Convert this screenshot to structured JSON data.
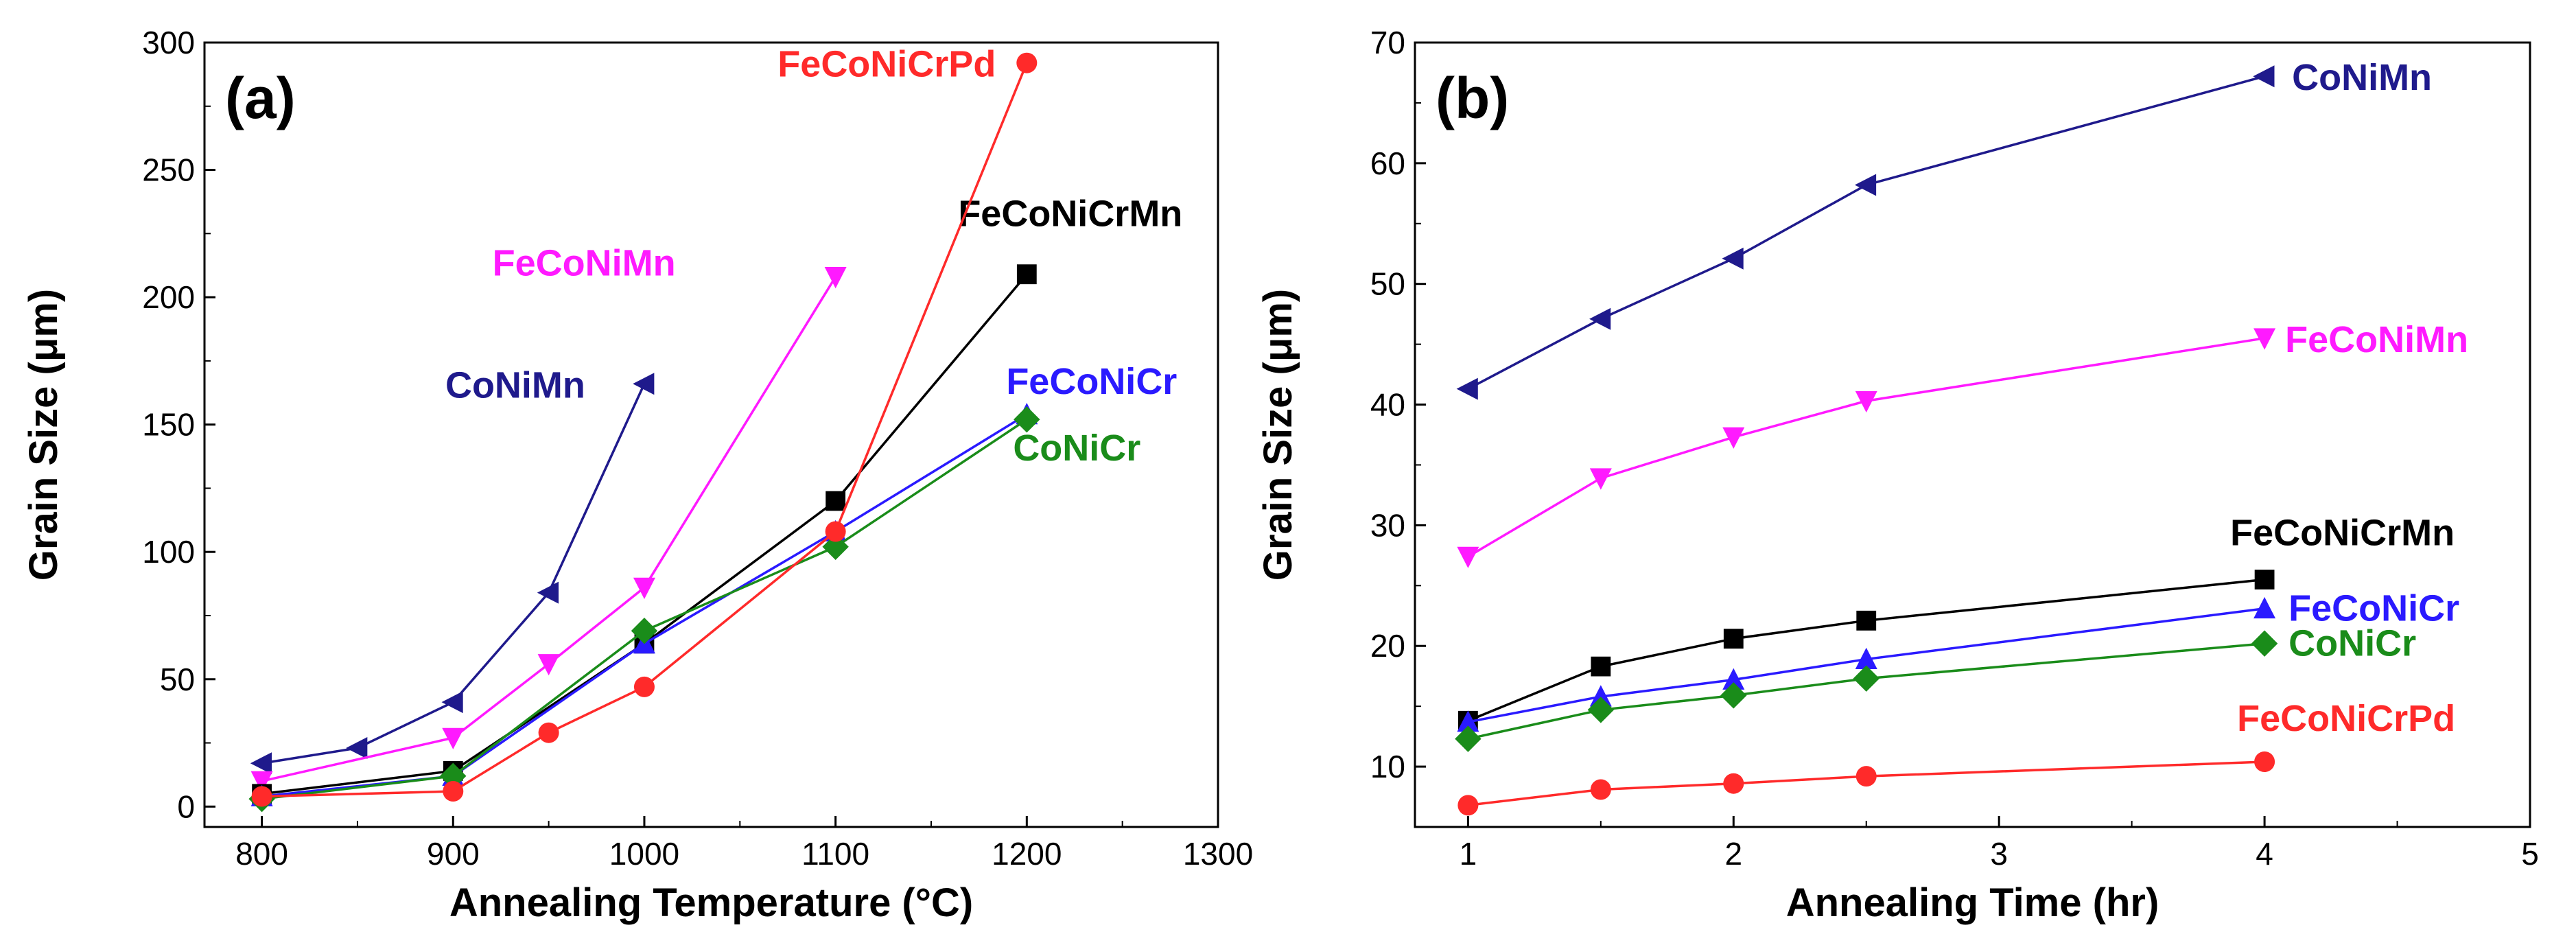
{
  "chart_data": [
    {
      "type": "line",
      "panel_label": "(a)",
      "xlabel": "Annealing Temperature (°C)",
      "ylabel": "Grain Size (μm)",
      "xlim": [
        770,
        1300
      ],
      "ylim": [
        -8,
        300
      ],
      "xticks": [
        800,
        900,
        1000,
        1100,
        1200,
        1300
      ],
      "yticks": [
        0,
        50,
        100,
        150,
        200,
        250,
        300
      ],
      "series": [
        {
          "name": "CoNiMn",
          "color": "#1f1a8c",
          "marker": "triangle-left",
          "x": [
            800,
            850,
            900,
            950,
            1000
          ],
          "y": [
            17,
            23,
            41,
            84,
            166
          ],
          "label_anchor": [
            1000,
            166
          ],
          "label_dx": -290,
          "label_dy": 20,
          "label_align": "start"
        },
        {
          "name": "FeCoNiMn",
          "color": "#ff1aff",
          "marker": "triangle-down",
          "x": [
            800,
            900,
            950,
            1000,
            1100
          ],
          "y": [
            10,
            27,
            56,
            86,
            208
          ],
          "label_anchor": [
            1100,
            208
          ],
          "label_dx": -500,
          "label_dy": -2,
          "label_align": "start"
        },
        {
          "name": "FeCoNiCrMn",
          "color": "#000000",
          "marker": "square",
          "x": [
            800,
            900,
            1000,
            1100,
            1200
          ],
          "y": [
            5,
            14,
            64,
            120,
            209
          ],
          "label_anchor": [
            1200,
            209
          ],
          "label_dx": -100,
          "label_dy": -70,
          "label_align": "start"
        },
        {
          "name": "FeCoNiCr",
          "color": "#2a1aff",
          "marker": "triangle-up",
          "x": [
            800,
            900,
            1000,
            1100,
            1200
          ],
          "y": [
            4,
            12,
            64,
            108,
            154
          ],
          "label_anchor": [
            1200,
            154
          ],
          "label_dx": -30,
          "label_dy": -30,
          "label_align": "start"
        },
        {
          "name": "CoNiCr",
          "color": "#1a8c1a",
          "marker": "diamond",
          "x": [
            800,
            900,
            1000,
            1100,
            1200
          ],
          "y": [
            3,
            12,
            69,
            102,
            152
          ],
          "label_anchor": [
            1200,
            152
          ],
          "label_dx": -20,
          "label_dy": 60,
          "label_align": "start"
        },
        {
          "name": "FeCoNiCrPd",
          "color": "#ff2a2a",
          "marker": "circle",
          "x": [
            800,
            900,
            950,
            1000,
            1100,
            1200
          ],
          "y": [
            4,
            6,
            29,
            47,
            108,
            292
          ],
          "label_anchor": [
            1200,
            292
          ],
          "label_dx": -45,
          "label_dy": 20,
          "label_align": "end"
        }
      ]
    },
    {
      "type": "line",
      "panel_label": "(b)",
      "xlabel": "Annealing Time (hr)",
      "ylabel": "Grain Size (μm)",
      "xlim": [
        0.8,
        5
      ],
      "ylim": [
        5,
        70
      ],
      "xticks": [
        1,
        2,
        3,
        4,
        5
      ],
      "yticks": [
        10,
        20,
        30,
        40,
        50,
        60,
        70
      ],
      "series": [
        {
          "name": "CoNiMn",
          "color": "#1f1a8c",
          "marker": "triangle-left",
          "x": [
            1,
            1.5,
            2,
            2.5,
            4
          ],
          "y": [
            41.3,
            47.1,
            52.1,
            58.2,
            67.2
          ],
          "label_anchor": [
            4,
            67.2
          ],
          "label_dx": 40,
          "label_dy": 20,
          "label_align": "start"
        },
        {
          "name": "FeCoNiMn",
          "color": "#ff1aff",
          "marker": "triangle-down",
          "x": [
            1,
            1.5,
            2,
            2.5,
            4
          ],
          "y": [
            27.4,
            33.9,
            37.3,
            40.3,
            45.5
          ],
          "label_anchor": [
            4,
            45.5
          ],
          "label_dx": 30,
          "label_dy": 20,
          "label_align": "start"
        },
        {
          "name": "FeCoNiCrMn",
          "color": "#000000",
          "marker": "square",
          "x": [
            1,
            1.5,
            2,
            2.5,
            4
          ],
          "y": [
            13.8,
            18.3,
            20.6,
            22.1,
            25.5
          ],
          "label_anchor": [
            4,
            25.5
          ],
          "label_dx": -50,
          "label_dy": -50,
          "label_align": "start"
        },
        {
          "name": "FeCoNiCr",
          "color": "#2a1aff",
          "marker": "triangle-up",
          "x": [
            1,
            1.5,
            2,
            2.5,
            4
          ],
          "y": [
            13.7,
            15.8,
            17.2,
            18.9,
            23.1
          ],
          "label_anchor": [
            4,
            23.1
          ],
          "label_dx": 35,
          "label_dy": 18,
          "label_align": "start"
        },
        {
          "name": "CoNiCr",
          "color": "#1a8c1a",
          "marker": "diamond",
          "x": [
            1,
            1.5,
            2,
            2.5,
            4
          ],
          "y": [
            12.3,
            14.7,
            15.9,
            17.3,
            20.2
          ],
          "label_anchor": [
            4,
            20.2
          ],
          "label_dx": 35,
          "label_dy": 18,
          "label_align": "start"
        },
        {
          "name": "FeCoNiCrPd",
          "color": "#ff2a2a",
          "marker": "circle",
          "x": [
            1,
            1.5,
            2,
            2.5,
            4
          ],
          "y": [
            6.8,
            8.1,
            8.6,
            9.2,
            10.4
          ],
          "label_anchor": [
            4,
            10.4
          ],
          "label_dx": -40,
          "label_dy": -45,
          "label_align": "start"
        }
      ]
    }
  ]
}
